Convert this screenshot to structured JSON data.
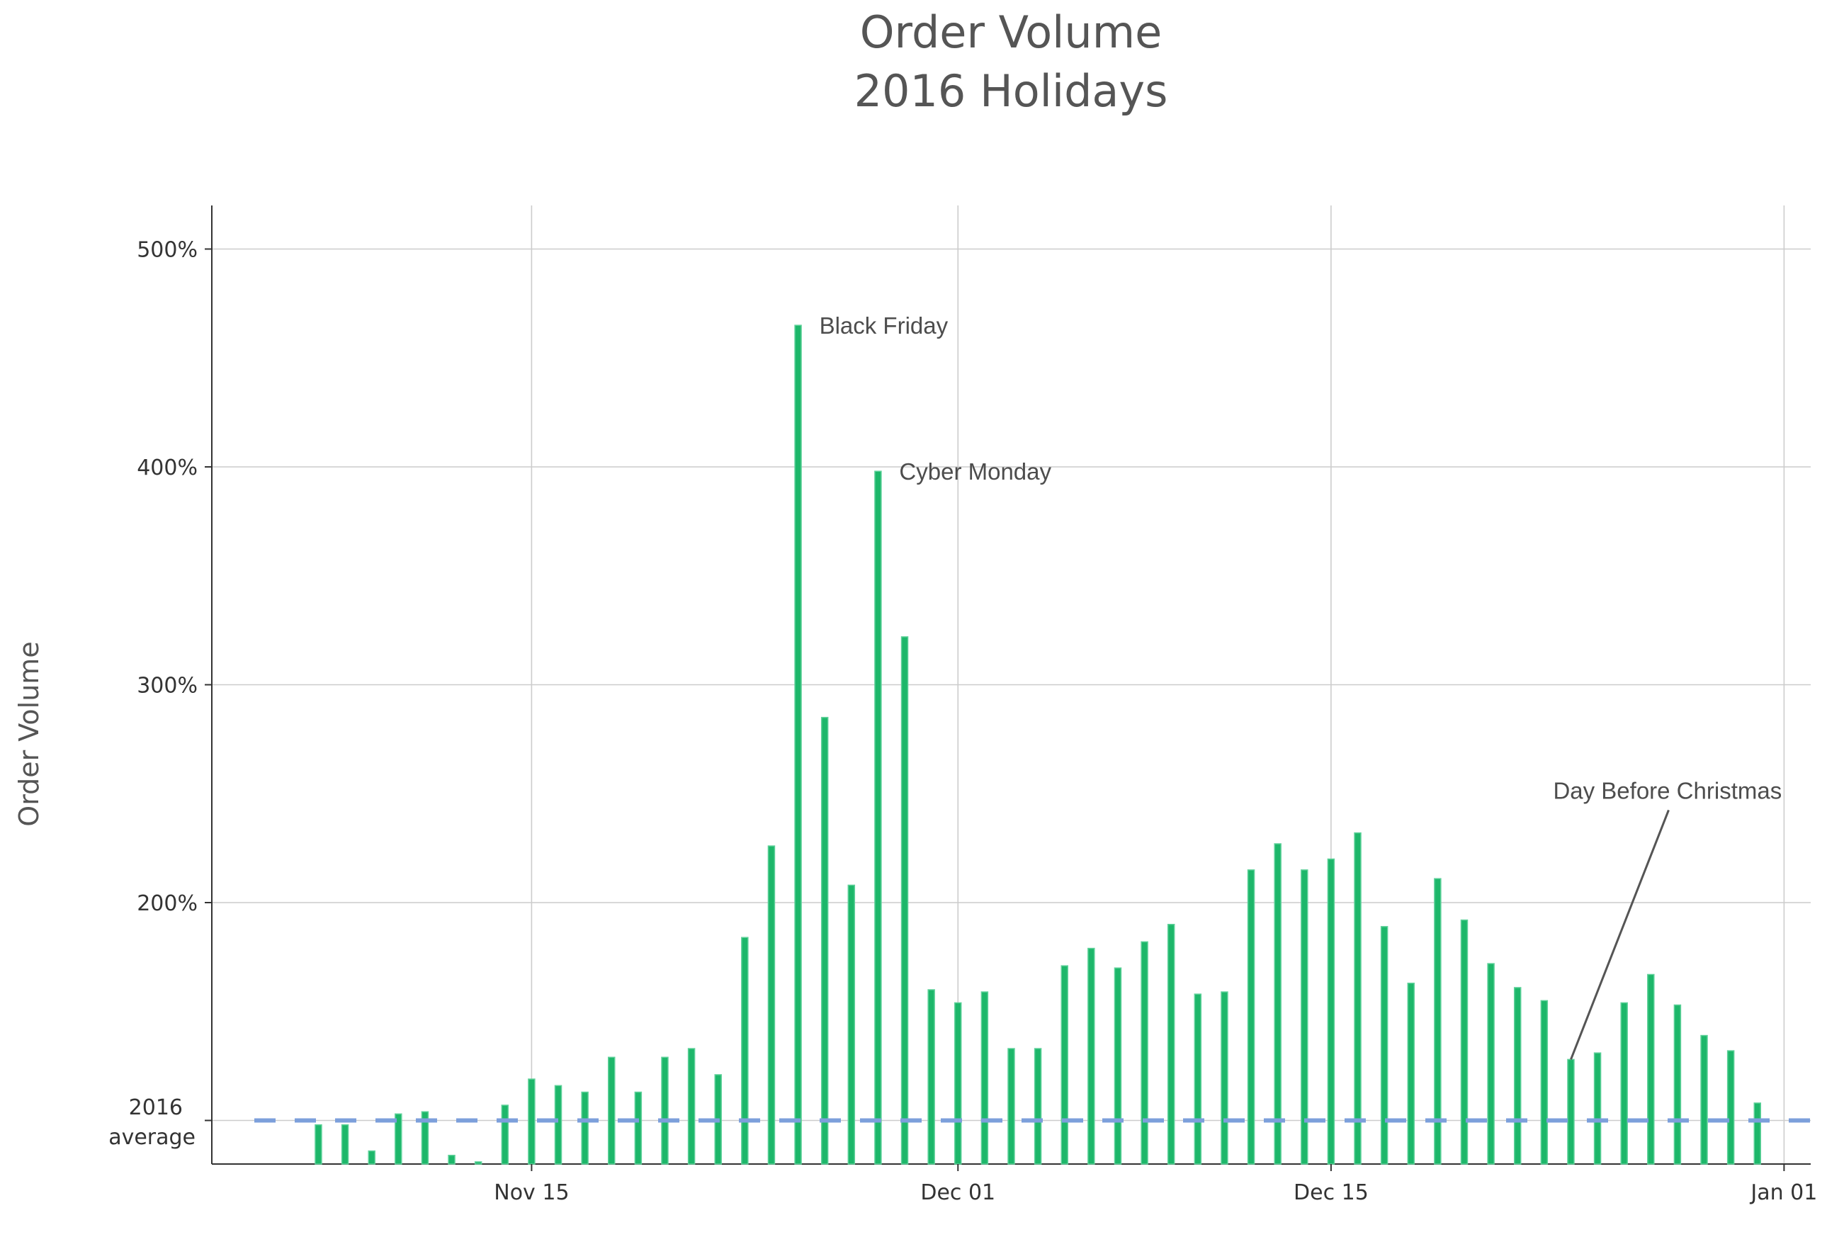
{
  "chart_data": {
    "type": "bar",
    "title": "Order Volume",
    "subtitle": "2016 Holidays",
    "xlabel": "",
    "ylabel": "Order Volume",
    "x_tick_labels": [
      "Nov 15",
      "Dec 01",
      "Dec 15",
      "Jan 01"
    ],
    "y_tick_labels": [
      "500%",
      "400%",
      "300%",
      "200%"
    ],
    "baseline_label_line1": "2016",
    "baseline_label_line2": "average",
    "ylim": [
      80,
      520
    ],
    "xlim": [
      "2016-11-03",
      "2017-01-02"
    ],
    "baseline": 100,
    "grid": true,
    "bar_color": "#1db76a",
    "bar_edge_color": "#5fd19a",
    "baseline_color": "#7c9fdb",
    "dates": [
      "2016-11-07",
      "2016-11-08",
      "2016-11-09",
      "2016-11-10",
      "2016-11-11",
      "2016-11-12",
      "2016-11-13",
      "2016-11-14",
      "2016-11-15",
      "2016-11-16",
      "2016-11-17",
      "2016-11-18",
      "2016-11-19",
      "2016-11-20",
      "2016-11-21",
      "2016-11-22",
      "2016-11-23",
      "2016-11-24",
      "2016-11-25",
      "2016-11-26",
      "2016-11-27",
      "2016-11-28",
      "2016-11-29",
      "2016-11-30",
      "2016-12-01",
      "2016-12-02",
      "2016-12-03",
      "2016-12-04",
      "2016-12-05",
      "2016-12-06",
      "2016-12-07",
      "2016-12-08",
      "2016-12-09",
      "2016-12-10",
      "2016-12-11",
      "2016-12-12",
      "2016-12-13",
      "2016-12-14",
      "2016-12-15",
      "2016-12-16",
      "2016-12-17",
      "2016-12-18",
      "2016-12-19",
      "2016-12-20",
      "2016-12-21",
      "2016-12-22",
      "2016-12-23",
      "2016-12-24",
      "2016-12-25",
      "2016-12-26",
      "2016-12-27",
      "2016-12-28",
      "2016-12-29",
      "2016-12-30",
      "2016-12-31"
    ],
    "values": [
      98,
      98,
      86,
      103,
      104,
      84,
      81,
      107,
      119,
      116,
      113,
      129,
      113,
      129,
      133,
      121,
      184,
      226,
      465,
      285,
      208,
      398,
      322,
      160,
      154,
      159,
      133,
      133,
      171,
      179,
      170,
      182,
      190,
      158,
      159,
      215,
      227,
      215,
      220,
      232,
      189,
      163,
      211,
      192,
      172,
      161,
      155,
      128,
      131,
      154,
      167,
      153,
      139,
      132,
      108
    ],
    "annotations": [
      {
        "text": "Black Friday",
        "date": "2016-11-25",
        "value": 465
      },
      {
        "text": "Cyber Monday",
        "date": "2016-11-28",
        "value": 398
      },
      {
        "text": "Day Before Christmas",
        "date": "2016-12-24",
        "value": 128
      }
    ]
  }
}
